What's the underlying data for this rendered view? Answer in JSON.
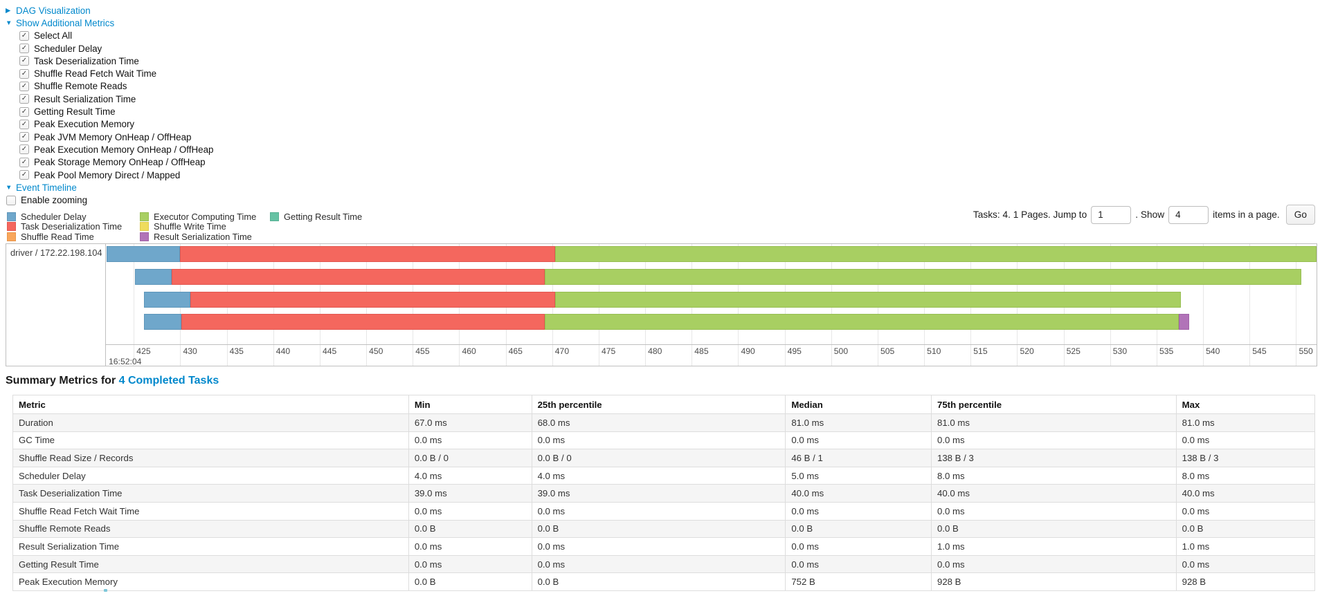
{
  "colors": {
    "scheduler_delay": {
      "fill": "#6FA7CB",
      "border": "#5E96BA"
    },
    "task_deserialization": {
      "fill": "#F4675E",
      "border": "#E25750"
    },
    "shuffle_read": {
      "fill": "#F9A65B",
      "border": "#E8954A"
    },
    "executor_computing": {
      "fill": "#A8CF62",
      "border": "#97BE52"
    },
    "shuffle_write": {
      "fill": "#EFDC5D",
      "border": "#DECB4D"
    },
    "result_serialization": {
      "fill": "#B173B8",
      "border": "#A062A7"
    },
    "getting_result": {
      "fill": "#66C2A4",
      "border": "#56B194"
    },
    "link": "#0088CC"
  },
  "controls": {
    "dag_label": "DAG Visualization",
    "metrics_label": "Show Additional Metrics",
    "timeline_label": "Event Timeline",
    "enable_zooming_label": "Enable zooming",
    "checkboxes": [
      {
        "label": "Select All",
        "checked": true
      },
      {
        "label": "Scheduler Delay",
        "checked": true
      },
      {
        "label": "Task Deserialization Time",
        "checked": true
      },
      {
        "label": "Shuffle Read Fetch Wait Time",
        "checked": true
      },
      {
        "label": "Shuffle Remote Reads",
        "checked": true
      },
      {
        "label": "Result Serialization Time",
        "checked": true
      },
      {
        "label": "Getting Result Time",
        "checked": true
      },
      {
        "label": "Peak Execution Memory",
        "checked": true
      },
      {
        "label": "Peak JVM Memory OnHeap / OffHeap",
        "checked": true
      },
      {
        "label": "Peak Execution Memory OnHeap / OffHeap",
        "checked": true
      },
      {
        "label": "Peak Storage Memory OnHeap / OffHeap",
        "checked": true
      },
      {
        "label": "Peak Pool Memory Direct / Mapped",
        "checked": true
      }
    ]
  },
  "legend": {
    "columns": [
      [
        {
          "label": "Scheduler Delay",
          "color": "scheduler_delay"
        },
        {
          "label": "Task Deserialization Time",
          "color": "task_deserialization"
        },
        {
          "label": "Shuffle Read Time",
          "color": "shuffle_read"
        }
      ],
      [
        {
          "label": "Executor Computing Time",
          "color": "executor_computing"
        },
        {
          "label": "Shuffle Write Time",
          "color": "shuffle_write"
        },
        {
          "label": "Result Serialization Time",
          "color": "result_serialization"
        }
      ],
      [
        {
          "label": "Getting Result Time",
          "color": "getting_result"
        }
      ]
    ]
  },
  "pagination": {
    "prefix": "Tasks: 4. 1 Pages. Jump to",
    "jump_value": "1",
    "middle": ". Show",
    "show_value": "4",
    "suffix": "items in a page.",
    "go_label": "Go"
  },
  "chart_data": {
    "type": "timeline",
    "group_label": "driver / 172.22.198.104",
    "x_domain": [
      422.0,
      552.2
    ],
    "tick_start": 425,
    "tick_end": 550,
    "tick_step": 5,
    "major_tick_label": "16:52:04",
    "tasks": [
      {
        "segments": [
          {
            "metric": "scheduler_delay",
            "from": 422.1,
            "to": 430.0
          },
          {
            "metric": "task_deserialization",
            "from": 430.0,
            "to": 470.3
          },
          {
            "metric": "executor_computing",
            "from": 470.3,
            "to": 552.2
          }
        ]
      },
      {
        "segments": [
          {
            "metric": "scheduler_delay",
            "from": 425.1,
            "to": 429.1
          },
          {
            "metric": "task_deserialization",
            "from": 429.1,
            "to": 469.2
          },
          {
            "metric": "executor_computing",
            "from": 469.2,
            "to": 550.6
          }
        ]
      },
      {
        "segments": [
          {
            "metric": "scheduler_delay",
            "from": 426.1,
            "to": 431.1
          },
          {
            "metric": "task_deserialization",
            "from": 431.1,
            "to": 470.3
          },
          {
            "metric": "executor_computing",
            "from": 470.3,
            "to": 537.6
          }
        ]
      },
      {
        "segments": [
          {
            "metric": "scheduler_delay",
            "from": 426.1,
            "to": 430.1
          },
          {
            "metric": "task_deserialization",
            "from": 430.1,
            "to": 469.2
          },
          {
            "metric": "executor_computing",
            "from": 469.2,
            "to": 537.4
          },
          {
            "metric": "result_serialization",
            "from": 537.4,
            "to": 538.5
          }
        ]
      }
    ]
  },
  "summary": {
    "title_prefix": "Summary Metrics for ",
    "title_link": "4 Completed Tasks",
    "columns": [
      "Metric",
      "Min",
      "25th percentile",
      "Median",
      "75th percentile",
      "Max"
    ],
    "rows": [
      {
        "metric": "Duration",
        "values": [
          "67.0 ms",
          "68.0 ms",
          "81.0 ms",
          "81.0 ms",
          "81.0 ms"
        ]
      },
      {
        "metric": "GC Time",
        "values": [
          "0.0 ms",
          "0.0 ms",
          "0.0 ms",
          "0.0 ms",
          "0.0 ms"
        ]
      },
      {
        "metric": "Shuffle Read Size / Records",
        "values": [
          "0.0 B / 0",
          "0.0 B / 0",
          "46 B / 1",
          "138 B / 3",
          "138 B / 3"
        ]
      },
      {
        "metric": "Scheduler Delay",
        "values": [
          "4.0 ms",
          "4.0 ms",
          "5.0 ms",
          "8.0 ms",
          "8.0 ms"
        ]
      },
      {
        "metric": "Task Deserialization Time",
        "values": [
          "39.0 ms",
          "39.0 ms",
          "40.0 ms",
          "40.0 ms",
          "40.0 ms"
        ]
      },
      {
        "metric": "Shuffle Read Fetch Wait Time",
        "values": [
          "0.0 ms",
          "0.0 ms",
          "0.0 ms",
          "0.0 ms",
          "0.0 ms"
        ]
      },
      {
        "metric": "Shuffle Remote Reads",
        "values": [
          "0.0 B",
          "0.0 B",
          "0.0 B",
          "0.0 B",
          "0.0 B"
        ]
      },
      {
        "metric": "Result Serialization Time",
        "values": [
          "0.0 ms",
          "0.0 ms",
          "0.0 ms",
          "1.0 ms",
          "1.0 ms"
        ]
      },
      {
        "metric": "Getting Result Time",
        "values": [
          "0.0 ms",
          "0.0 ms",
          "0.0 ms",
          "0.0 ms",
          "0.0 ms"
        ]
      },
      {
        "metric": "Peak Execution Memory",
        "values": [
          "0.0 B",
          "0.0 B",
          "752 B",
          "928 B",
          "928 B"
        ]
      }
    ]
  }
}
